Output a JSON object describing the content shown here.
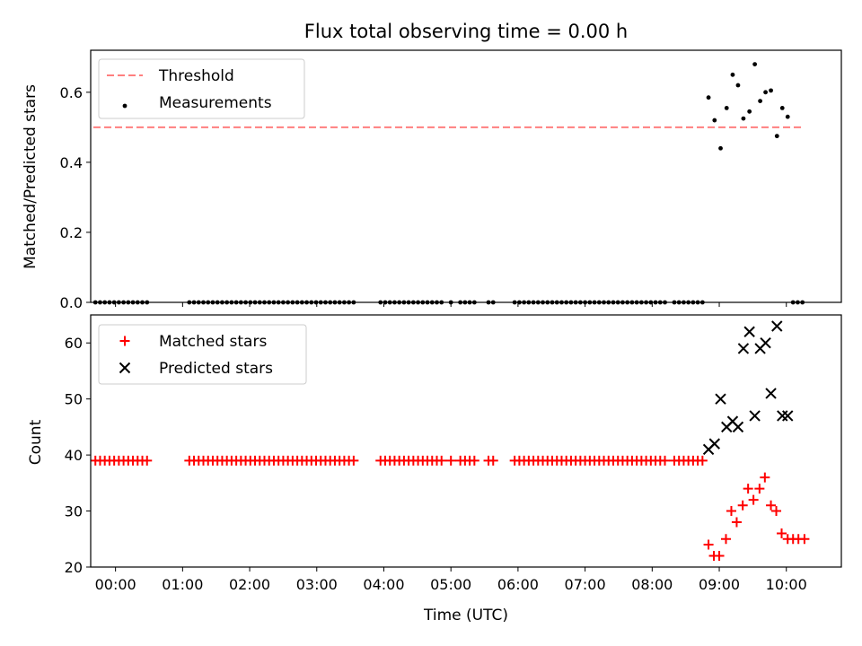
{
  "chart_data": [
    {
      "type": "scatter",
      "title": "Flux total observing time = 0.00 h",
      "xlabel": "",
      "ylabel": "Matched/Predicted stars",
      "xlim": [
        -0.37,
        10.82
      ],
      "ylim": [
        0,
        0.72
      ],
      "xtick_values": [
        0,
        1,
        2,
        3,
        4,
        5,
        6,
        7,
        8,
        9,
        10
      ],
      "ytick_values": [
        0.0,
        0.2,
        0.4,
        0.6
      ],
      "ytick_labels": [
        "0.0",
        "0.2",
        "0.4",
        "0.6"
      ],
      "legend_position": "top-left",
      "threshold": {
        "name": "Threshold",
        "value": 0.5,
        "x_range": [
          -0.33,
          10.25
        ],
        "color": "#ff7f7f"
      },
      "series": [
        {
          "name": "Measurements",
          "color": "#000000",
          "marker": "dot",
          "points": [
            [
              -0.3,
              0
            ],
            [
              -0.23,
              0
            ],
            [
              -0.16,
              0
            ],
            [
              -0.09,
              0
            ],
            [
              -0.02,
              0
            ],
            [
              0.05,
              0
            ],
            [
              0.12,
              0
            ],
            [
              0.19,
              0
            ],
            [
              0.26,
              0
            ],
            [
              0.33,
              0
            ],
            [
              0.4,
              0
            ],
            [
              0.47,
              0
            ],
            [
              1.1,
              0
            ],
            [
              1.17,
              0
            ],
            [
              1.24,
              0
            ],
            [
              1.31,
              0
            ],
            [
              1.38,
              0
            ],
            [
              1.45,
              0
            ],
            [
              1.52,
              0
            ],
            [
              1.59,
              0
            ],
            [
              1.66,
              0
            ],
            [
              1.73,
              0
            ],
            [
              1.8,
              0
            ],
            [
              1.87,
              0
            ],
            [
              1.94,
              0
            ],
            [
              2.01,
              0
            ],
            [
              2.08,
              0
            ],
            [
              2.15,
              0
            ],
            [
              2.22,
              0
            ],
            [
              2.29,
              0
            ],
            [
              2.36,
              0
            ],
            [
              2.43,
              0
            ],
            [
              2.5,
              0
            ],
            [
              2.57,
              0
            ],
            [
              2.64,
              0
            ],
            [
              2.71,
              0
            ],
            [
              2.78,
              0
            ],
            [
              2.85,
              0
            ],
            [
              2.92,
              0
            ],
            [
              2.99,
              0
            ],
            [
              3.06,
              0
            ],
            [
              3.13,
              0
            ],
            [
              3.2,
              0
            ],
            [
              3.27,
              0
            ],
            [
              3.34,
              0
            ],
            [
              3.41,
              0
            ],
            [
              3.48,
              0
            ],
            [
              3.55,
              0
            ],
            [
              3.95,
              0
            ],
            [
              4.02,
              0
            ],
            [
              4.09,
              0
            ],
            [
              4.16,
              0
            ],
            [
              4.23,
              0
            ],
            [
              4.3,
              0
            ],
            [
              4.37,
              0
            ],
            [
              4.44,
              0
            ],
            [
              4.51,
              0
            ],
            [
              4.58,
              0
            ],
            [
              4.65,
              0
            ],
            [
              4.72,
              0
            ],
            [
              4.79,
              0
            ],
            [
              4.86,
              0
            ],
            [
              5.0,
              0
            ],
            [
              5.14,
              0
            ],
            [
              5.21,
              0
            ],
            [
              5.28,
              0
            ],
            [
              5.35,
              0
            ],
            [
              5.56,
              0
            ],
            [
              5.63,
              0
            ],
            [
              5.95,
              0
            ],
            [
              6.02,
              0
            ],
            [
              6.09,
              0
            ],
            [
              6.16,
              0
            ],
            [
              6.23,
              0
            ],
            [
              6.3,
              0
            ],
            [
              6.37,
              0
            ],
            [
              6.44,
              0
            ],
            [
              6.51,
              0
            ],
            [
              6.58,
              0
            ],
            [
              6.65,
              0
            ],
            [
              6.72,
              0
            ],
            [
              6.79,
              0
            ],
            [
              6.86,
              0
            ],
            [
              6.93,
              0
            ],
            [
              7.0,
              0
            ],
            [
              7.07,
              0
            ],
            [
              7.14,
              0
            ],
            [
              7.21,
              0
            ],
            [
              7.28,
              0
            ],
            [
              7.35,
              0
            ],
            [
              7.42,
              0
            ],
            [
              7.49,
              0
            ],
            [
              7.56,
              0
            ],
            [
              7.63,
              0
            ],
            [
              7.7,
              0
            ],
            [
              7.77,
              0
            ],
            [
              7.84,
              0
            ],
            [
              7.91,
              0
            ],
            [
              7.98,
              0
            ],
            [
              8.05,
              0
            ],
            [
              8.12,
              0
            ],
            [
              8.19,
              0
            ],
            [
              8.33,
              0
            ],
            [
              8.4,
              0
            ],
            [
              8.47,
              0
            ],
            [
              8.54,
              0
            ],
            [
              8.61,
              0
            ],
            [
              8.68,
              0
            ],
            [
              8.75,
              0
            ],
            [
              10.1,
              0
            ],
            [
              10.17,
              0
            ],
            [
              10.24,
              0
            ],
            [
              8.84,
              0.585
            ],
            [
              8.93,
              0.52
            ],
            [
              9.02,
              0.44
            ],
            [
              9.11,
              0.555
            ],
            [
              9.2,
              0.65
            ],
            [
              9.28,
              0.62
            ],
            [
              9.36,
              0.525
            ],
            [
              9.45,
              0.545
            ],
            [
              9.53,
              0.68
            ],
            [
              9.61,
              0.575
            ],
            [
              9.69,
              0.6
            ],
            [
              9.77,
              0.605
            ],
            [
              9.86,
              0.475
            ],
            [
              9.94,
              0.555
            ],
            [
              10.02,
              0.53
            ]
          ]
        }
      ]
    },
    {
      "type": "scatter",
      "title": "",
      "xlabel": "Time (UTC)",
      "ylabel": "Count",
      "xlim": [
        -0.37,
        10.82
      ],
      "ylim": [
        20,
        65
      ],
      "xtick_values": [
        0,
        1,
        2,
        3,
        4,
        5,
        6,
        7,
        8,
        9,
        10
      ],
      "xtick_labels": [
        "00:00",
        "01:00",
        "02:00",
        "03:00",
        "04:00",
        "05:00",
        "06:00",
        "07:00",
        "08:00",
        "09:00",
        "10:00"
      ],
      "ytick_values": [
        20,
        30,
        40,
        50,
        60
      ],
      "ytick_labels": [
        "20",
        "30",
        "40",
        "50",
        "60"
      ],
      "legend_position": "top-left",
      "series": [
        {
          "name": "Matched stars",
          "color": "#ff0000",
          "marker": "plus",
          "points": [
            [
              -0.3,
              39
            ],
            [
              -0.23,
              39
            ],
            [
              -0.16,
              39
            ],
            [
              -0.09,
              39
            ],
            [
              -0.02,
              39
            ],
            [
              0.05,
              39
            ],
            [
              0.12,
              39
            ],
            [
              0.19,
              39
            ],
            [
              0.26,
              39
            ],
            [
              0.33,
              39
            ],
            [
              0.4,
              39
            ],
            [
              0.47,
              39
            ],
            [
              1.1,
              39
            ],
            [
              1.17,
              39
            ],
            [
              1.24,
              39
            ],
            [
              1.31,
              39
            ],
            [
              1.38,
              39
            ],
            [
              1.45,
              39
            ],
            [
              1.52,
              39
            ],
            [
              1.59,
              39
            ],
            [
              1.66,
              39
            ],
            [
              1.73,
              39
            ],
            [
              1.8,
              39
            ],
            [
              1.87,
              39
            ],
            [
              1.94,
              39
            ],
            [
              2.01,
              39
            ],
            [
              2.08,
              39
            ],
            [
              2.15,
              39
            ],
            [
              2.22,
              39
            ],
            [
              2.29,
              39
            ],
            [
              2.36,
              39
            ],
            [
              2.43,
              39
            ],
            [
              2.5,
              39
            ],
            [
              2.57,
              39
            ],
            [
              2.64,
              39
            ],
            [
              2.71,
              39
            ],
            [
              2.78,
              39
            ],
            [
              2.85,
              39
            ],
            [
              2.92,
              39
            ],
            [
              2.99,
              39
            ],
            [
              3.06,
              39
            ],
            [
              3.13,
              39
            ],
            [
              3.2,
              39
            ],
            [
              3.27,
              39
            ],
            [
              3.34,
              39
            ],
            [
              3.41,
              39
            ],
            [
              3.48,
              39
            ],
            [
              3.55,
              39
            ],
            [
              3.95,
              39
            ],
            [
              4.02,
              39
            ],
            [
              4.09,
              39
            ],
            [
              4.16,
              39
            ],
            [
              4.23,
              39
            ],
            [
              4.3,
              39
            ],
            [
              4.37,
              39
            ],
            [
              4.44,
              39
            ],
            [
              4.51,
              39
            ],
            [
              4.58,
              39
            ],
            [
              4.65,
              39
            ],
            [
              4.72,
              39
            ],
            [
              4.79,
              39
            ],
            [
              4.86,
              39
            ],
            [
              5.0,
              39
            ],
            [
              5.14,
              39
            ],
            [
              5.21,
              39
            ],
            [
              5.28,
              39
            ],
            [
              5.35,
              39
            ],
            [
              5.56,
              39
            ],
            [
              5.63,
              39
            ],
            [
              5.95,
              39
            ],
            [
              6.02,
              39
            ],
            [
              6.09,
              39
            ],
            [
              6.16,
              39
            ],
            [
              6.23,
              39
            ],
            [
              6.3,
              39
            ],
            [
              6.37,
              39
            ],
            [
              6.44,
              39
            ],
            [
              6.51,
              39
            ],
            [
              6.58,
              39
            ],
            [
              6.65,
              39
            ],
            [
              6.72,
              39
            ],
            [
              6.79,
              39
            ],
            [
              6.86,
              39
            ],
            [
              6.93,
              39
            ],
            [
              7.0,
              39
            ],
            [
              7.07,
              39
            ],
            [
              7.14,
              39
            ],
            [
              7.21,
              39
            ],
            [
              7.28,
              39
            ],
            [
              7.35,
              39
            ],
            [
              7.42,
              39
            ],
            [
              7.49,
              39
            ],
            [
              7.56,
              39
            ],
            [
              7.63,
              39
            ],
            [
              7.7,
              39
            ],
            [
              7.77,
              39
            ],
            [
              7.84,
              39
            ],
            [
              7.91,
              39
            ],
            [
              7.98,
              39
            ],
            [
              8.05,
              39
            ],
            [
              8.12,
              39
            ],
            [
              8.19,
              39
            ],
            [
              8.33,
              39
            ],
            [
              8.4,
              39
            ],
            [
              8.47,
              39
            ],
            [
              8.54,
              39
            ],
            [
              8.61,
              39
            ],
            [
              8.68,
              39
            ],
            [
              8.75,
              39
            ],
            [
              8.84,
              24
            ],
            [
              8.92,
              22
            ],
            [
              9.0,
              22
            ],
            [
              9.1,
              25
            ],
            [
              9.18,
              30
            ],
            [
              9.26,
              28
            ],
            [
              9.35,
              31
            ],
            [
              9.43,
              34
            ],
            [
              9.51,
              32
            ],
            [
              9.6,
              34
            ],
            [
              9.68,
              36
            ],
            [
              9.77,
              31
            ],
            [
              9.85,
              30
            ],
            [
              9.93,
              26
            ],
            [
              10.02,
              25
            ],
            [
              10.1,
              25
            ],
            [
              10.18,
              25
            ],
            [
              10.27,
              25
            ]
          ]
        },
        {
          "name": "Predicted stars",
          "color": "#000000",
          "marker": "x",
          "points": [
            [
              8.84,
              41
            ],
            [
              8.93,
              42
            ],
            [
              9.02,
              50
            ],
            [
              9.11,
              45
            ],
            [
              9.2,
              46
            ],
            [
              9.28,
              45
            ],
            [
              9.36,
              59
            ],
            [
              9.45,
              62
            ],
            [
              9.53,
              47
            ],
            [
              9.61,
              59
            ],
            [
              9.69,
              60
            ],
            [
              9.77,
              51
            ],
            [
              9.86,
              63
            ],
            [
              9.94,
              47
            ],
            [
              10.02,
              47
            ]
          ]
        }
      ]
    }
  ]
}
